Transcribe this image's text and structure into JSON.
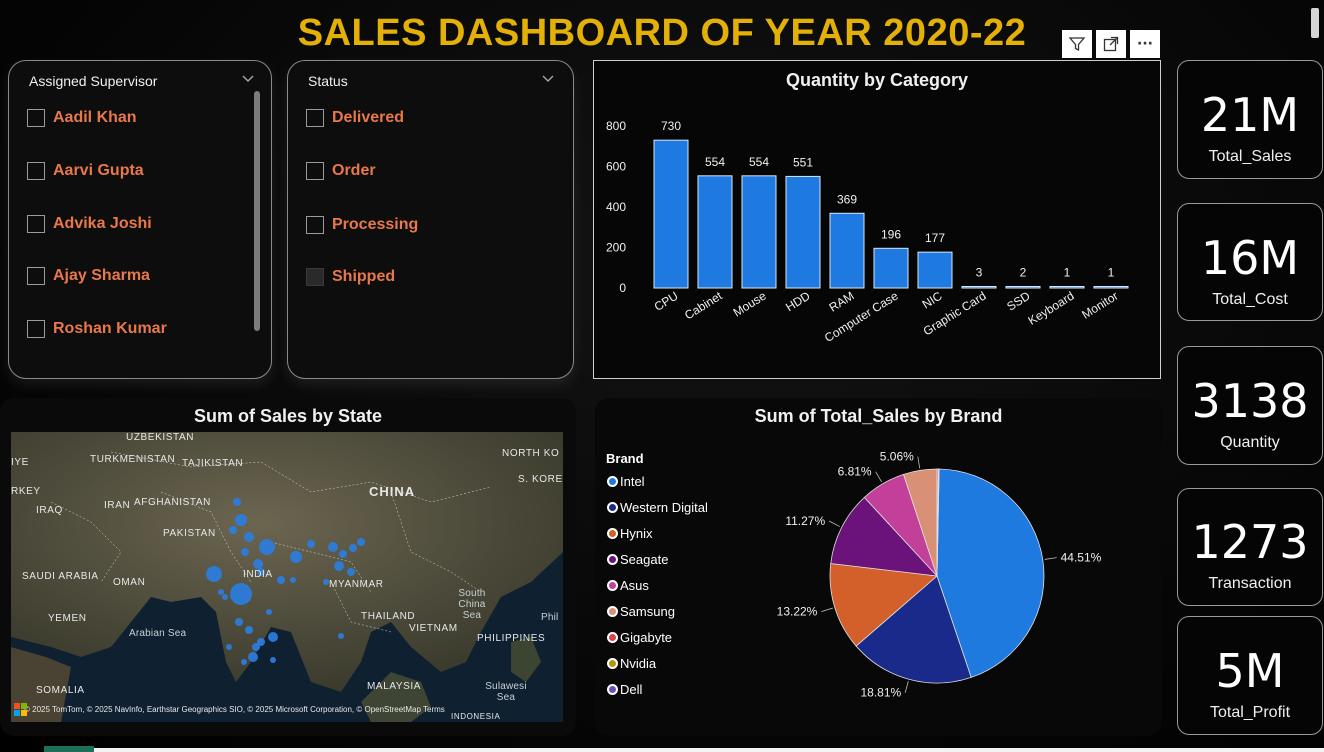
{
  "dashboard": {
    "title": "SALES DASHBOARD OF YEAR 2020-22"
  },
  "toolbar": {
    "icons": [
      "filter-icon",
      "focus-mode-icon",
      "more-options-icon"
    ],
    "more_label": "···"
  },
  "supervisor_slicer": {
    "header": "Assigned Supervisor",
    "items": [
      {
        "label": "Aadil Khan",
        "checked": false
      },
      {
        "label": "Aarvi Gupta",
        "checked": false
      },
      {
        "label": "Advika Joshi",
        "checked": false
      },
      {
        "label": "Ajay Sharma",
        "checked": false
      },
      {
        "label": "Roshan Kumar",
        "checked": false
      }
    ]
  },
  "status_slicer": {
    "header": "Status",
    "items": [
      {
        "label": "Delivered",
        "checked": false
      },
      {
        "label": "Order",
        "checked": false
      },
      {
        "label": "Processing",
        "checked": false
      },
      {
        "label": "Shipped",
        "checked": false
      }
    ]
  },
  "kpis": [
    {
      "value": "21M",
      "label": "Total_Sales"
    },
    {
      "value": "16M",
      "label": "Total_Cost"
    },
    {
      "value": "3138",
      "label": "Quantity"
    },
    {
      "value": "1273",
      "label": "Transaction"
    },
    {
      "value": "5M",
      "label": "Total_Profit"
    }
  ],
  "map": {
    "title": "Sum of Sales by State",
    "labels": {
      "uzbekistan": "UZBEKISTAN",
      "turkmenistan": "TURKMENISTAN",
      "tajikistan": "TAJIKISTAN",
      "iye": "IYE",
      "rkey": "RKEY",
      "iraq": "IRAQ",
      "iran": "IRAN",
      "afghanistan": "AFGHANISTAN",
      "pakistan": "PAKISTAN",
      "china": "CHINA",
      "north_ko": "NORTH KO",
      "s_kore": "S. KORE",
      "saudi_arabia": "SAUDI ARABIA",
      "oman": "OMAN",
      "india": "INDIA",
      "myanmar": "MYANMAR",
      "yemen": "YEMEN",
      "arabian_sea": "Arabian Sea",
      "thailand": "THAILAND",
      "south_china_sea": "South China Sea",
      "vietnam": "VIETNAM",
      "philippines": "PHILIPPINES",
      "phil": "Phil",
      "somalia": "SOMALIA",
      "malaysia": "MALAYSIA",
      "sulawesi_sea": "Sulawesi Sea",
      "indonesia": "INDONESIA"
    },
    "credit": "© 2025 TomTom, © 2025 NavInfo, Earthstar Geographics SIO, © 2025 Microsoft Corporation, © OpenStreetMap  Terms",
    "bubble_color": "#2b7de0"
  },
  "chart_data": [
    {
      "type": "bar",
      "title": "Quantity by Category",
      "categories": [
        "CPU",
        "Cabinet",
        "Mouse",
        "HDD",
        "RAM",
        "Computer Case",
        "NIC",
        "Graphic Card",
        "SSD",
        "Keyboard",
        "Monitor"
      ],
      "values": [
        730,
        554,
        554,
        551,
        369,
        196,
        177,
        3,
        2,
        1,
        1
      ],
      "yticks": [
        0,
        200,
        400,
        600,
        800
      ],
      "ylim": [
        0,
        800
      ],
      "grid": false,
      "color": "#1e7ae0"
    },
    {
      "type": "pie",
      "title": "Sum of Total_Sales by Brand",
      "legend_title": "Brand",
      "legend_position": "left",
      "labels": [
        "Intel",
        "Western Digital",
        "Hynix",
        "Seagate",
        "Asus",
        "Samsung",
        "Gigabyte",
        "Nvidia",
        "Dell"
      ],
      "values": [
        44.51,
        18.81,
        13.22,
        11.27,
        6.81,
        5.06,
        0.2,
        0.07,
        0.05
      ],
      "data_labels": [
        "44.51%",
        "18.81%",
        "13.22%",
        "11.27%",
        "6.81%",
        "5.06%",
        "",
        "",
        ""
      ],
      "colors": [
        "#1f7ae0",
        "#1a2a8a",
        "#d35f2a",
        "#6b137a",
        "#c2409a",
        "#d89077",
        "#d64545",
        "#b8960c",
        "#6b4fc2"
      ]
    }
  ]
}
